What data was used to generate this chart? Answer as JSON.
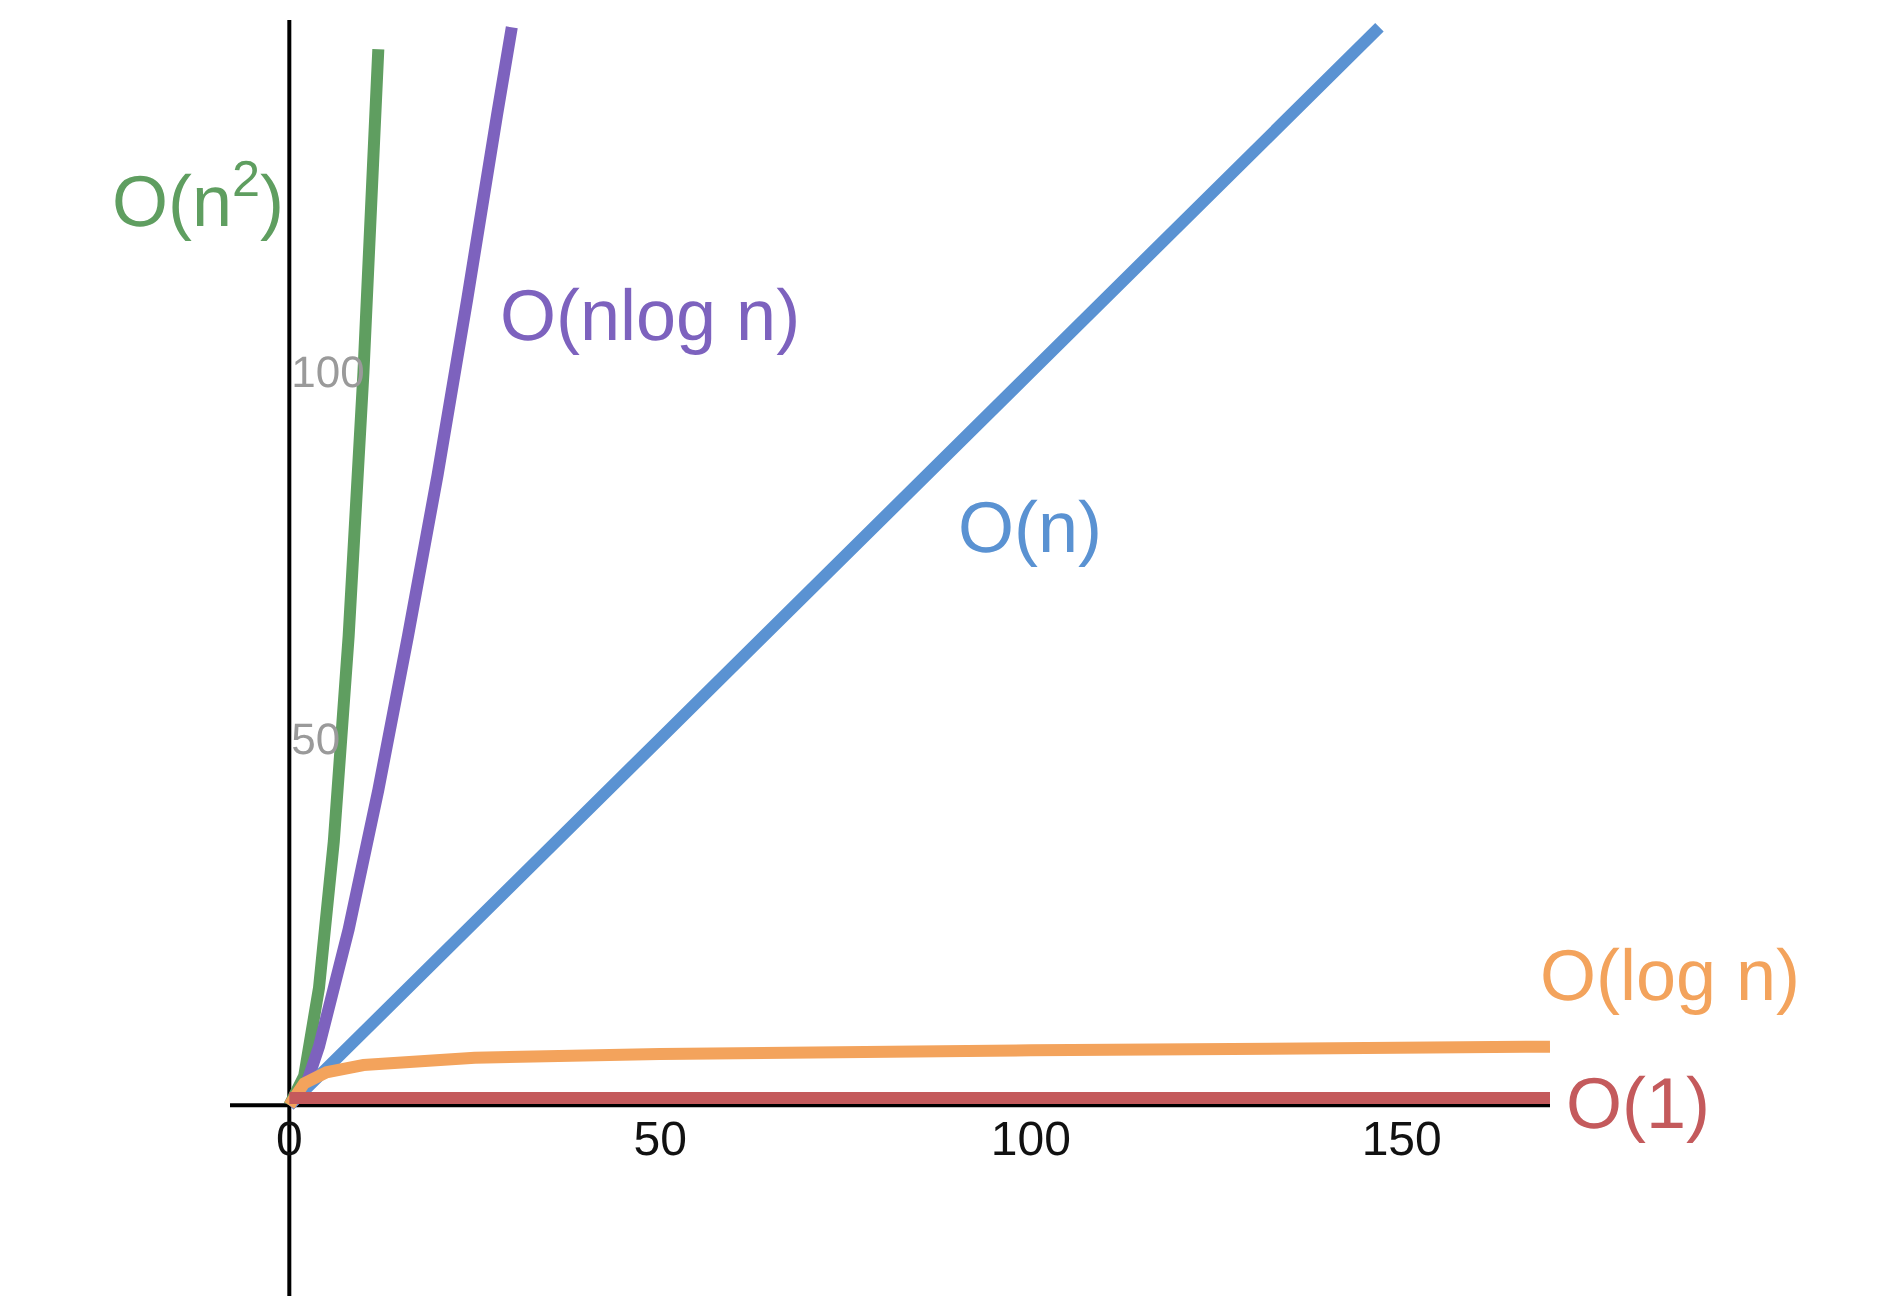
{
  "chart_data": {
    "type": "line",
    "series": [
      {
        "name": "O(n$^{2}$)",
        "color": "#5f9e60",
        "x": [
          0,
          2,
          4,
          6,
          8,
          10,
          12
        ],
        "values": [
          0,
          4,
          16,
          36,
          64,
          100,
          144
        ]
      },
      {
        "name": "O(nlog n)",
        "color": "#7d62be",
        "x": [
          0,
          2,
          4,
          8,
          12,
          16,
          20,
          24,
          28,
          30
        ],
        "values": [
          0,
          2,
          8,
          24,
          43,
          64,
          86,
          110,
          135,
          147
        ]
      },
      {
        "name": "O(n)",
        "color": "#5a92d2",
        "x": [
          0,
          50,
          100,
          147
        ],
        "values": [
          0,
          50,
          100,
          147
        ]
      },
      {
        "name": "O(log n)",
        "color": "#f3a35c",
        "x": [
          0,
          2,
          5,
          10,
          25,
          50,
          100,
          170
        ],
        "values": [
          0,
          3,
          4.5,
          5.5,
          6.5,
          7,
          7.5,
          8
        ]
      },
      {
        "name": "O(1)",
        "color": "#c45a5c",
        "x": [
          0,
          170
        ],
        "values": [
          1,
          1
        ]
      }
    ],
    "xlim": [
      -8,
      170
    ],
    "ylim": [
      -26,
      148
    ],
    "xticks": [
      0,
      50,
      100,
      150
    ],
    "yticks": [
      50,
      100
    ],
    "grid": false,
    "legend": false,
    "marker": "none",
    "line_style": "solid"
  }
}
